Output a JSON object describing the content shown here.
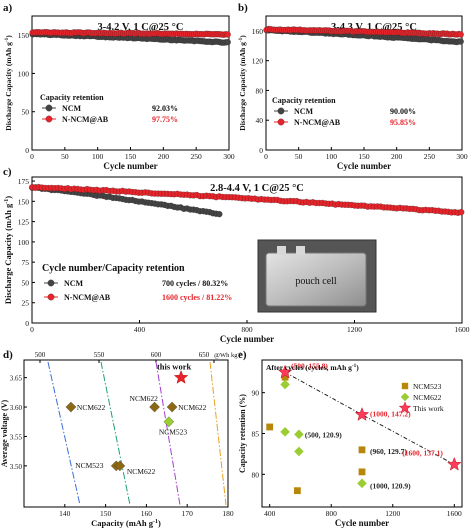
{
  "panels": [
    {
      "id": "a",
      "letter": "a)",
      "title": "3-4.2 V, 1 C@25 °C",
      "xlabel": "Cycle number",
      "ylabel": "Discharge Capacity (mAh g",
      "ylabel_sup": "-1",
      "ylabel_close": ")",
      "xlim": [
        0,
        300
      ],
      "ylim": [
        0,
        175
      ],
      "xticks": [
        0,
        50,
        100,
        150,
        200,
        250,
        300
      ],
      "yticks": [
        0,
        50,
        100,
        150
      ],
      "legend_title": "Capacity retention",
      "series": [
        {
          "name": "NCM",
          "value": "92.03%",
          "color": "#444444",
          "start": 151.5,
          "end": 140.2,
          "cycles": 300
        },
        {
          "name": "N-NCM@AB",
          "value": "97.75%",
          "color": "#e8232a",
          "start": 153.5,
          "end": 151.0,
          "cycles": 300
        }
      ]
    },
    {
      "id": "b",
      "letter": "b)",
      "title": "3-4.3 V, 1 C@25 °C",
      "xlabel": "Cycle number",
      "ylabel": "Discharge Capacity (mAh g",
      "ylabel_sup": "-1",
      "ylabel_close": ")",
      "xlim": [
        0,
        300
      ],
      "ylim": [
        0,
        180
      ],
      "xticks": [
        0,
        50,
        100,
        150,
        200,
        250,
        300
      ],
      "yticks": [
        0,
        40,
        80,
        120,
        160
      ],
      "legend_title": "Capacity retention",
      "series": [
        {
          "name": "NCM",
          "value": "90.00%",
          "color": "#444444",
          "start": 161.0,
          "end": 145.0,
          "cycles": 300
        },
        {
          "name": "N-NCM@AB",
          "value": "95.85%",
          "color": "#e8232a",
          "start": 162.0,
          "end": 155.3,
          "cycles": 300
        }
      ]
    },
    {
      "id": "c",
      "letter": "c)",
      "title": "2.8-4.4 V, 1 C@25 °C",
      "xlabel": "Cycle number",
      "ylabel": "Discharge Capacity (mAh g",
      "ylabel_sup": "-1",
      "ylabel_close": ")",
      "xlim": [
        0,
        1600
      ],
      "ylim": [
        0,
        180
      ],
      "xticks": [
        0,
        400,
        800,
        1200,
        1600
      ],
      "yticks": [
        0,
        25,
        50,
        75,
        100,
        125,
        150,
        175
      ],
      "legend_title": "Cycle number/Capacity retention",
      "inset_label": "pouch cell",
      "series": [
        {
          "name": "NCM",
          "value": "700 cycles / 80.32%",
          "color": "#444444",
          "start": 167.0,
          "end": 134.0,
          "cycles": 700
        },
        {
          "name": "N-NCM@AB",
          "value": "1600 cycles / 81.22%",
          "color": "#e8232a",
          "start": 167.5,
          "end": 136.0,
          "cycles": 1600
        }
      ]
    }
  ],
  "panel_d": {
    "letter": "d)",
    "xlabel": "Capacity (mAh g",
    "xlabel_sup": "-1",
    "xlabel_close": ")",
    "ylabel": "Average voltage (V)",
    "xlim": [
      130,
      180
    ],
    "ylim": [
      3.43,
      3.68
    ],
    "xticks": [
      140,
      150,
      160,
      170,
      180
    ],
    "yticks": [
      3.5,
      3.55,
      3.6,
      3.65
    ],
    "top_ticks": [
      "500",
      "550",
      "600",
      "650"
    ],
    "top_unit": "@Wh kg",
    "top_unit_sup": "-1",
    "points": [
      {
        "label": "NCM622",
        "x": 141.5,
        "y": 3.6,
        "color": "#8b6914"
      },
      {
        "label": "NCM622",
        "x": 162.0,
        "y": 3.6,
        "color": "#8b6914"
      },
      {
        "label": "NCM622",
        "x": 166.3,
        "y": 3.6,
        "color": "#8b6914"
      },
      {
        "label": "NCM523",
        "x": 165.5,
        "y": 3.575,
        "color": "#9acd32"
      },
      {
        "label": "NCM523",
        "x": 152.6,
        "y": 3.5,
        "color": "#8b6914"
      },
      {
        "label": "NCM622",
        "x": 153.5,
        "y": 3.5,
        "color": "#8b6914"
      },
      {
        "label": "this work",
        "x": 168.5,
        "y": 3.65,
        "color": "#e8232a"
      }
    ],
    "energy_lines": [
      {
        "wh": "500",
        "color": "#3b6fd8"
      },
      {
        "wh": "550",
        "color": "#1fa07a"
      },
      {
        "wh": "600",
        "color": "#a23fd0"
      },
      {
        "wh": "650",
        "color": "#e8a020"
      }
    ]
  },
  "panel_e": {
    "letter": "e)",
    "xlabel": "Cycle number",
    "ylabel": "Capacity retention (%)",
    "xlim": [
      350,
      1650
    ],
    "ylim": [
      76,
      94
    ],
    "xticks": [
      400,
      800,
      1200,
      1600
    ],
    "yticks": [
      80,
      85,
      90
    ],
    "legend_title": "After cycles (cycles, mAh g",
    "legend_title_sup": "-1",
    "legend_title_close": ")",
    "legend": [
      {
        "name": "NCM523",
        "color": "#b8860b",
        "shape": "square"
      },
      {
        "name": "NCM622",
        "color": "#9acd32",
        "shape": "diamond"
      },
      {
        "name": "This work",
        "color": "#e8232a",
        "shape": "star"
      }
    ],
    "squares": [
      [
        400,
        85.8
      ],
      [
        580,
        78.0
      ],
      [
        1000,
        83.0
      ],
      [
        1000,
        80.3
      ],
      [
        500,
        91.9
      ]
    ],
    "diamonds": [
      [
        500,
        85.2
      ],
      [
        590,
        84.9
      ],
      [
        590,
        82.8
      ],
      [
        1000,
        78.9
      ],
      [
        500,
        91.0
      ]
    ],
    "stars": [
      [
        500,
        92.5
      ],
      [
        1000,
        87.3
      ],
      [
        1600,
        81.2
      ]
    ],
    "annotations": [
      {
        "text": "(500, 155.8)",
        "x": 500,
        "y": 92.5,
        "color": "#e8232a",
        "dx": 6,
        "dy": -7
      },
      {
        "text": "(500, 120.9)",
        "x": 590,
        "y": 84.9,
        "color": "#222222",
        "dx": 6,
        "dy": 0
      },
      {
        "text": "(1000, 147.2)",
        "x": 1000,
        "y": 87.3,
        "color": "#e8232a",
        "dx": 8,
        "dy": -1
      },
      {
        "text": "(960, 129.7)",
        "x": 1000,
        "y": 83.0,
        "color": "#222222",
        "dx": 8,
        "dy": 1
      },
      {
        "text": "(1600, 137.1)",
        "x": 1600,
        "y": 81.2,
        "color": "#e8232a",
        "dx": -52,
        "dy": -12
      },
      {
        "text": "(1000, 120.9)",
        "x": 1000,
        "y": 78.9,
        "color": "#222222",
        "dx": 8,
        "dy": 2
      }
    ]
  }
}
